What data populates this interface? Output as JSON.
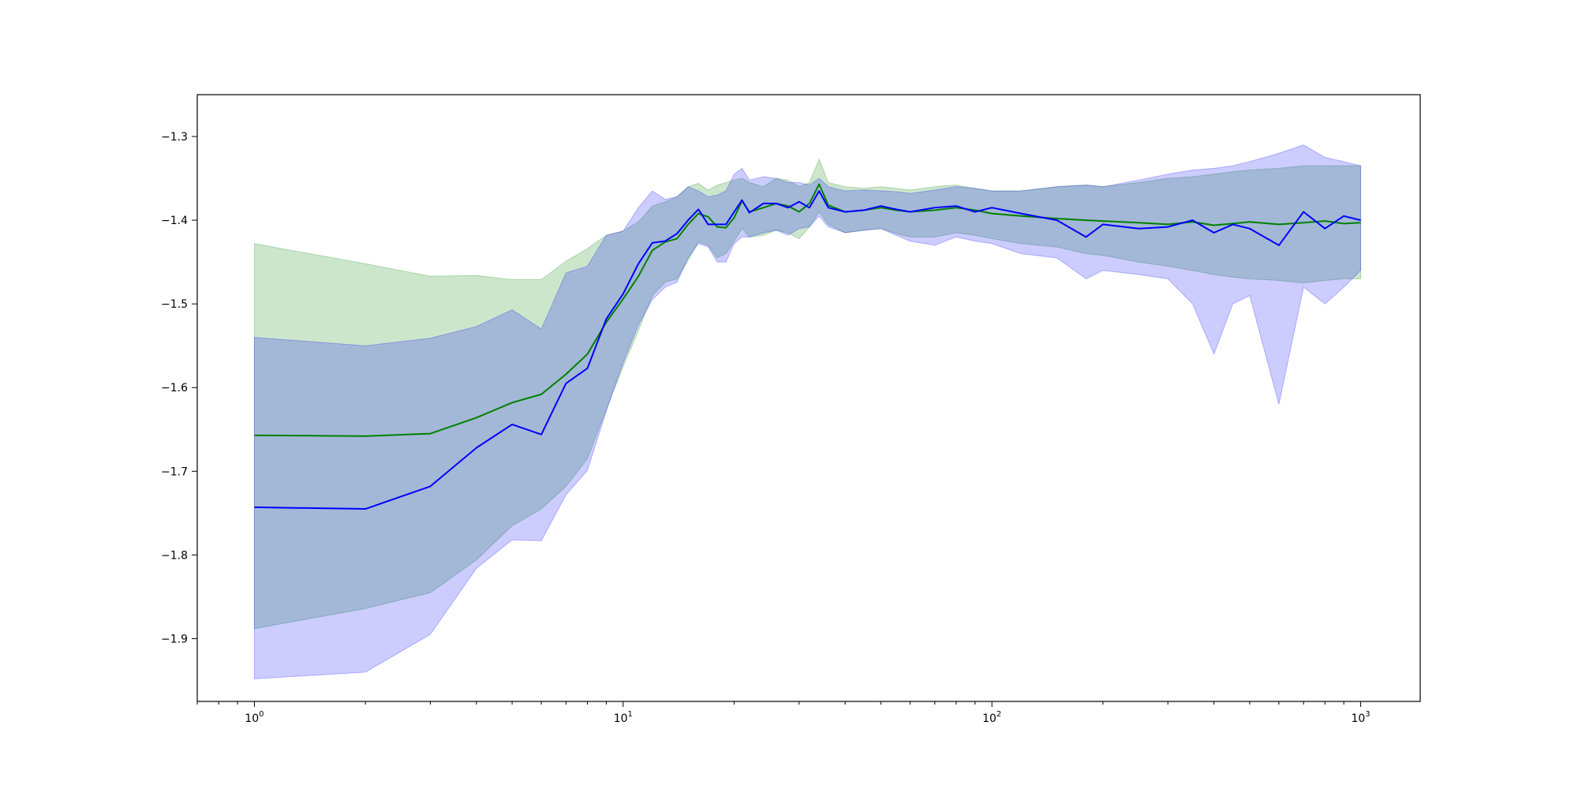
{
  "chart_data": {
    "type": "line",
    "title": "",
    "xlabel": "",
    "ylabel": "",
    "x_scale": "log",
    "xlim": [
      0.7,
      1450
    ],
    "ylim": [
      -1.975,
      -1.25
    ],
    "grid": false,
    "x_ticks": [
      {
        "value": 1,
        "base": "10",
        "exp": "0"
      },
      {
        "value": 10,
        "base": "10",
        "exp": "1"
      },
      {
        "value": 100,
        "base": "10",
        "exp": "2"
      },
      {
        "value": 1000,
        "base": "10",
        "exp": "3"
      }
    ],
    "y_ticks": [
      {
        "value": -1.3,
        "label": "−1.3"
      },
      {
        "value": -1.4,
        "label": "−1.4"
      },
      {
        "value": -1.5,
        "label": "−1.5"
      },
      {
        "value": -1.6,
        "label": "−1.6"
      },
      {
        "value": -1.7,
        "label": "−1.7"
      },
      {
        "value": -1.8,
        "label": "−1.8"
      },
      {
        "value": -1.9,
        "label": "−1.9"
      }
    ],
    "series": [
      {
        "color": "#008000",
        "band_color": "#008000",
        "band_opacity": 0.2,
        "x": [
          1,
          2,
          3,
          4,
          5,
          6,
          7,
          8,
          9,
          10,
          11,
          12,
          13,
          14,
          15,
          16,
          17,
          18,
          19,
          20,
          21,
          22,
          24,
          26,
          28,
          30,
          32,
          34,
          36,
          40,
          45,
          50,
          55,
          60,
          70,
          80,
          90,
          100,
          120,
          150,
          180,
          200,
          250,
          300,
          350,
          400,
          450,
          500,
          600,
          700,
          800,
          900,
          1000
        ],
        "values": [
          -1.657,
          -1.658,
          -1.655,
          -1.636,
          -1.618,
          -1.608,
          -1.584,
          -1.56,
          -1.522,
          -1.494,
          -1.467,
          -1.436,
          -1.426,
          -1.422,
          -1.405,
          -1.392,
          -1.396,
          -1.408,
          -1.409,
          -1.397,
          -1.377,
          -1.39,
          -1.385,
          -1.38,
          -1.383,
          -1.39,
          -1.38,
          -1.357,
          -1.382,
          -1.39,
          -1.388,
          -1.385,
          -1.388,
          -1.39,
          -1.388,
          -1.385,
          -1.388,
          -1.392,
          -1.395,
          -1.398,
          -1.4,
          -1.401,
          -1.403,
          -1.405,
          -1.402,
          -1.406,
          -1.404,
          -1.402,
          -1.405,
          -1.403,
          -1.401,
          -1.404,
          -1.403
        ],
        "upper": [
          -1.428,
          -1.452,
          -1.467,
          -1.466,
          -1.471,
          -1.471,
          -1.449,
          -1.434,
          -1.418,
          -1.413,
          -1.402,
          -1.383,
          -1.378,
          -1.372,
          -1.36,
          -1.356,
          -1.364,
          -1.358,
          -1.355,
          -1.352,
          -1.35,
          -1.355,
          -1.36,
          -1.35,
          -1.352,
          -1.36,
          -1.355,
          -1.327,
          -1.355,
          -1.36,
          -1.362,
          -1.36,
          -1.362,
          -1.364,
          -1.36,
          -1.358,
          -1.362,
          -1.365,
          -1.365,
          -1.36,
          -1.358,
          -1.36,
          -1.355,
          -1.35,
          -1.348,
          -1.345,
          -1.342,
          -1.34,
          -1.338,
          -1.335,
          -1.335,
          -1.335,
          -1.335
        ],
        "lower": [
          -1.888,
          -1.864,
          -1.845,
          -1.806,
          -1.765,
          -1.745,
          -1.718,
          -1.685,
          -1.626,
          -1.575,
          -1.532,
          -1.49,
          -1.474,
          -1.47,
          -1.448,
          -1.426,
          -1.43,
          -1.445,
          -1.44,
          -1.425,
          -1.41,
          -1.42,
          -1.418,
          -1.412,
          -1.415,
          -1.422,
          -1.408,
          -1.39,
          -1.405,
          -1.415,
          -1.412,
          -1.41,
          -1.416,
          -1.42,
          -1.42,
          -1.415,
          -1.418,
          -1.422,
          -1.428,
          -1.432,
          -1.44,
          -1.442,
          -1.45,
          -1.455,
          -1.46,
          -1.465,
          -1.468,
          -1.47,
          -1.472,
          -1.475,
          -1.472,
          -1.47,
          -1.47
        ]
      },
      {
        "color": "#0000ff",
        "band_color": "#0000ff",
        "band_opacity": 0.2,
        "x": [
          1,
          2,
          3,
          4,
          5,
          6,
          7,
          8,
          9,
          10,
          11,
          12,
          13,
          14,
          15,
          16,
          17,
          18,
          19,
          20,
          21,
          22,
          24,
          26,
          28,
          30,
          32,
          34,
          36,
          40,
          45,
          50,
          55,
          60,
          70,
          80,
          90,
          100,
          120,
          150,
          180,
          200,
          250,
          300,
          350,
          400,
          450,
          500,
          600,
          700,
          800,
          900,
          1000
        ],
        "values": [
          -1.743,
          -1.745,
          -1.718,
          -1.672,
          -1.644,
          -1.656,
          -1.595,
          -1.577,
          -1.518,
          -1.488,
          -1.452,
          -1.427,
          -1.425,
          -1.416,
          -1.4,
          -1.387,
          -1.405,
          -1.405,
          -1.405,
          -1.39,
          -1.376,
          -1.391,
          -1.38,
          -1.38,
          -1.385,
          -1.378,
          -1.385,
          -1.365,
          -1.385,
          -1.39,
          -1.388,
          -1.383,
          -1.387,
          -1.39,
          -1.385,
          -1.383,
          -1.39,
          -1.385,
          -1.392,
          -1.4,
          -1.42,
          -1.405,
          -1.41,
          -1.408,
          -1.4,
          -1.415,
          -1.405,
          -1.41,
          -1.43,
          -1.39,
          -1.41,
          -1.395,
          -1.4
        ],
        "upper": [
          -1.54,
          -1.55,
          -1.541,
          -1.527,
          -1.507,
          -1.53,
          -1.463,
          -1.455,
          -1.418,
          -1.413,
          -1.385,
          -1.365,
          -1.375,
          -1.372,
          -1.36,
          -1.365,
          -1.372,
          -1.37,
          -1.365,
          -1.345,
          -1.338,
          -1.352,
          -1.348,
          -1.35,
          -1.355,
          -1.355,
          -1.358,
          -1.35,
          -1.36,
          -1.365,
          -1.364,
          -1.365,
          -1.366,
          -1.368,
          -1.364,
          -1.36,
          -1.362,
          -1.365,
          -1.365,
          -1.36,
          -1.358,
          -1.36,
          -1.352,
          -1.345,
          -1.34,
          -1.338,
          -1.335,
          -1.33,
          -1.32,
          -1.31,
          -1.325,
          -1.33,
          -1.335
        ],
        "lower": [
          -1.948,
          -1.94,
          -1.895,
          -1.816,
          -1.782,
          -1.783,
          -1.728,
          -1.699,
          -1.628,
          -1.57,
          -1.525,
          -1.495,
          -1.48,
          -1.474,
          -1.445,
          -1.428,
          -1.432,
          -1.45,
          -1.45,
          -1.428,
          -1.42,
          -1.42,
          -1.415,
          -1.412,
          -1.418,
          -1.41,
          -1.408,
          -1.395,
          -1.408,
          -1.415,
          -1.412,
          -1.41,
          -1.418,
          -1.425,
          -1.43,
          -1.42,
          -1.425,
          -1.428,
          -1.44,
          -1.445,
          -1.47,
          -1.46,
          -1.465,
          -1.47,
          -1.5,
          -1.56,
          -1.5,
          -1.49,
          -1.62,
          -1.48,
          -1.5,
          -1.48,
          -1.46
        ]
      }
    ]
  }
}
